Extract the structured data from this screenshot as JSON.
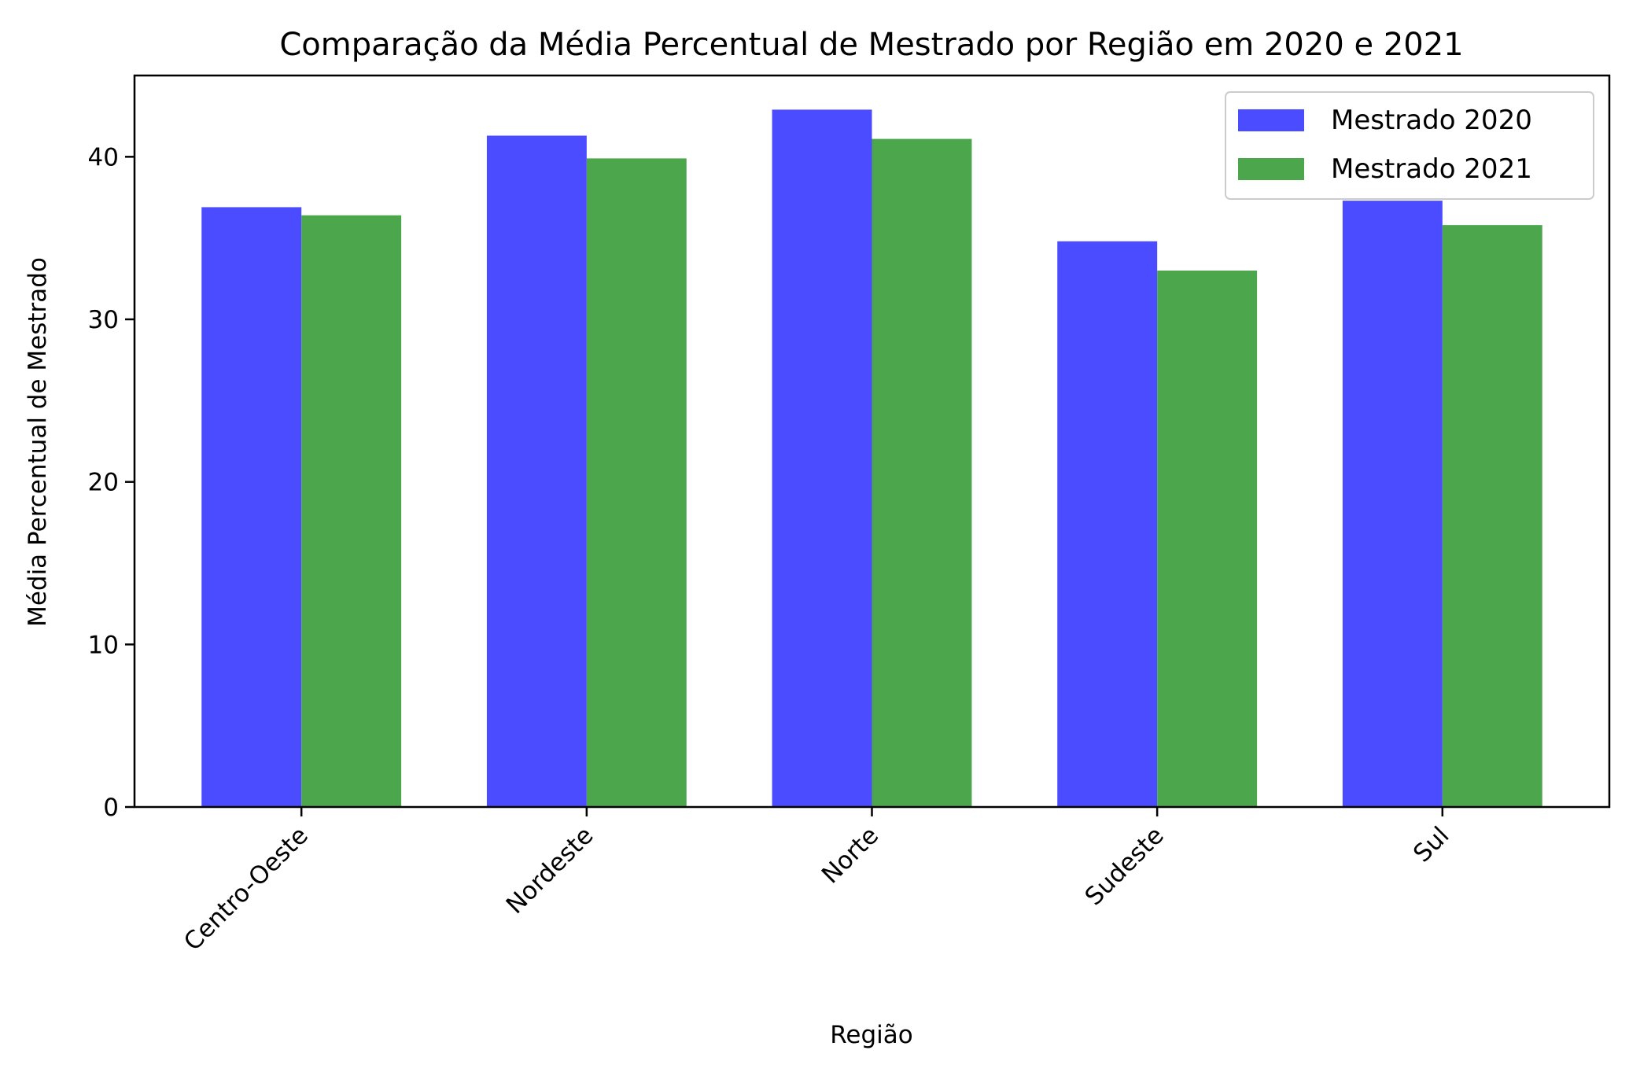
{
  "chart_data": {
    "type": "bar",
    "title": "Comparação da Média Percentual de Mestrado por Região em 2020 e 2021",
    "xlabel": "Região",
    "ylabel": "Média Percentual de Mestrado",
    "categories": [
      "Centro-Oeste",
      "Nordeste",
      "Norte",
      "Sudeste",
      "Sul"
    ],
    "series": [
      {
        "name": "Mestrado 2020",
        "color": "#4b4bff",
        "values": [
          36.9,
          41.3,
          42.9,
          34.8,
          37.3
        ]
      },
      {
        "name": "Mestrado 2021",
        "color": "#4ca64c",
        "values": [
          36.4,
          39.9,
          41.1,
          33.0,
          35.8
        ]
      }
    ],
    "ylim": [
      0,
      45
    ],
    "yticks": [
      0,
      10,
      20,
      30,
      40
    ],
    "xtick_rotation": 45,
    "grid": false,
    "legend_position": "top-right"
  }
}
